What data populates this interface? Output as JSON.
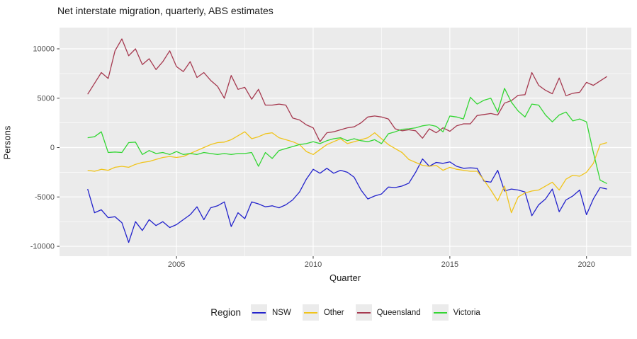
{
  "figure": {
    "title": "Net interstate migration, quarterly, ABS estimates"
  },
  "axes": {
    "x_label": "Quarter",
    "y_label": "Persons",
    "x_tick_labels": [
      "2005",
      "2010",
      "2015",
      "2020"
    ],
    "y_tick_labels": [
      "-10000",
      "-5000",
      "0",
      "5000",
      "10000"
    ]
  },
  "legend": {
    "title": "Region",
    "items": [
      "NSW",
      "Other",
      "Queensland",
      "Victoria"
    ]
  },
  "chart_data": {
    "type": "line",
    "title": "Net interstate migration, quarterly, ABS estimates",
    "xlabel": "Quarter",
    "ylabel": "Persons",
    "x_unit": "decimal_year_quarterly",
    "x_start": 2001.75,
    "x_step": 0.25,
    "n_points": 77,
    "x_breaks": [
      2005,
      2010,
      2015,
      2020
    ],
    "x_minor_breaks": [
      2002.5,
      2007.5,
      2012.5,
      2017.5
    ],
    "y_breaks": [
      -10000,
      -5000,
      0,
      5000,
      10000
    ],
    "y_minor_breaks": [
      -7500,
      -2500,
      2500,
      7500
    ],
    "xlim": [
      2000.72,
      2021.64
    ],
    "ylim": [
      -11000,
      12150
    ],
    "grid": true,
    "legend_position": "bottom",
    "legend_title": "Region",
    "panel_background": "#ebebeb",
    "grid_color": "#ffffff",
    "tick_color": "#333333",
    "tick_label_color": "#4d4d4d",
    "series": [
      {
        "name": "NSW",
        "color": "#2323cc",
        "values": [
          -4200,
          -6600,
          -6300,
          -7100,
          -7000,
          -7600,
          -9600,
          -7500,
          -8400,
          -7300,
          -7900,
          -7500,
          -8100,
          -7800,
          -7300,
          -6800,
          -6000,
          -7300,
          -6100,
          -5900,
          -5500,
          -8000,
          -6600,
          -7200,
          -5500,
          -5700,
          -6000,
          -5900,
          -6100,
          -5800,
          -5300,
          -4500,
          -3200,
          -2200,
          -2600,
          -2100,
          -2600,
          -2300,
          -2500,
          -3000,
          -4300,
          -5200,
          -4900,
          -4700,
          -4000,
          -4050,
          -3900,
          -3600,
          -2500,
          -1150,
          -1900,
          -1500,
          -1600,
          -1450,
          -1900,
          -2100,
          -2050,
          -2100,
          -3400,
          -3500,
          -2300,
          -4400,
          -4200,
          -4300,
          -4500,
          -6900,
          -5800,
          -5200,
          -4200,
          -6500,
          -5300,
          -4900,
          -4300,
          -6800,
          -5200,
          -4050,
          -4200
        ]
      },
      {
        "name": "Other",
        "color": "#f0c41b",
        "values": [
          -2300,
          -2400,
          -2200,
          -2300,
          -2000,
          -1900,
          -2000,
          -1700,
          -1500,
          -1400,
          -1200,
          -1000,
          -900,
          -1000,
          -900,
          -600,
          -300,
          0,
          300,
          500,
          550,
          800,
          1200,
          1600,
          900,
          1100,
          1400,
          1500,
          1000,
          800,
          600,
          300,
          -400,
          -700,
          -200,
          300,
          600,
          900,
          400,
          600,
          800,
          1000,
          1500,
          900,
          300,
          -100,
          -500,
          -1200,
          -1500,
          -1800,
          -1900,
          -1800,
          -2300,
          -2000,
          -2200,
          -2300,
          -2400,
          -2400,
          -3300,
          -4300,
          -5400,
          -3900,
          -6600,
          -5000,
          -4600,
          -4400,
          -4300,
          -3900,
          -3500,
          -4300,
          -3200,
          -2800,
          -2900,
          -2500,
          -1600,
          300,
          500
        ]
      },
      {
        "name": "Queensland",
        "color": "#a63a50",
        "values": [
          5400,
          6500,
          7600,
          7000,
          9800,
          11000,
          9300,
          10000,
          8400,
          9000,
          7900,
          8700,
          9800,
          8200,
          7700,
          8700,
          7100,
          7600,
          6800,
          6200,
          5000,
          7300,
          5900,
          6100,
          4900,
          5900,
          4300,
          4300,
          4400,
          4300,
          3000,
          2800,
          2300,
          2000,
          600,
          1500,
          1600,
          1800,
          2000,
          2100,
          2500,
          3100,
          3200,
          3100,
          2900,
          1900,
          1700,
          1800,
          1700,
          950,
          1900,
          1500,
          2000,
          1650,
          2200,
          2400,
          2400,
          3250,
          3350,
          3450,
          3300,
          4500,
          4750,
          5300,
          5350,
          7600,
          6300,
          5800,
          5450,
          7050,
          5250,
          5500,
          5600,
          6600,
          6300,
          6750,
          7200
        ]
      },
      {
        "name": "Victoria",
        "color": "#33d633",
        "values": [
          1000,
          1100,
          1600,
          -500,
          -450,
          -500,
          500,
          550,
          -700,
          -300,
          -600,
          -500,
          -700,
          -400,
          -700,
          -600,
          -700,
          -500,
          -600,
          -700,
          -600,
          -700,
          -600,
          -600,
          -500,
          -1900,
          -500,
          -1100,
          -300,
          -100,
          100,
          300,
          400,
          600,
          400,
          700,
          900,
          1000,
          700,
          900,
          700,
          600,
          800,
          400,
          1400,
          1600,
          1850,
          1900,
          2000,
          2200,
          2300,
          2150,
          1600,
          3200,
          3100,
          2900,
          5100,
          4400,
          4800,
          5000,
          3600,
          6000,
          4600,
          3700,
          3100,
          4400,
          4300,
          3300,
          2600,
          3300,
          3600,
          2700,
          2900,
          2600,
          -500,
          -3300,
          -3650
        ]
      }
    ]
  }
}
